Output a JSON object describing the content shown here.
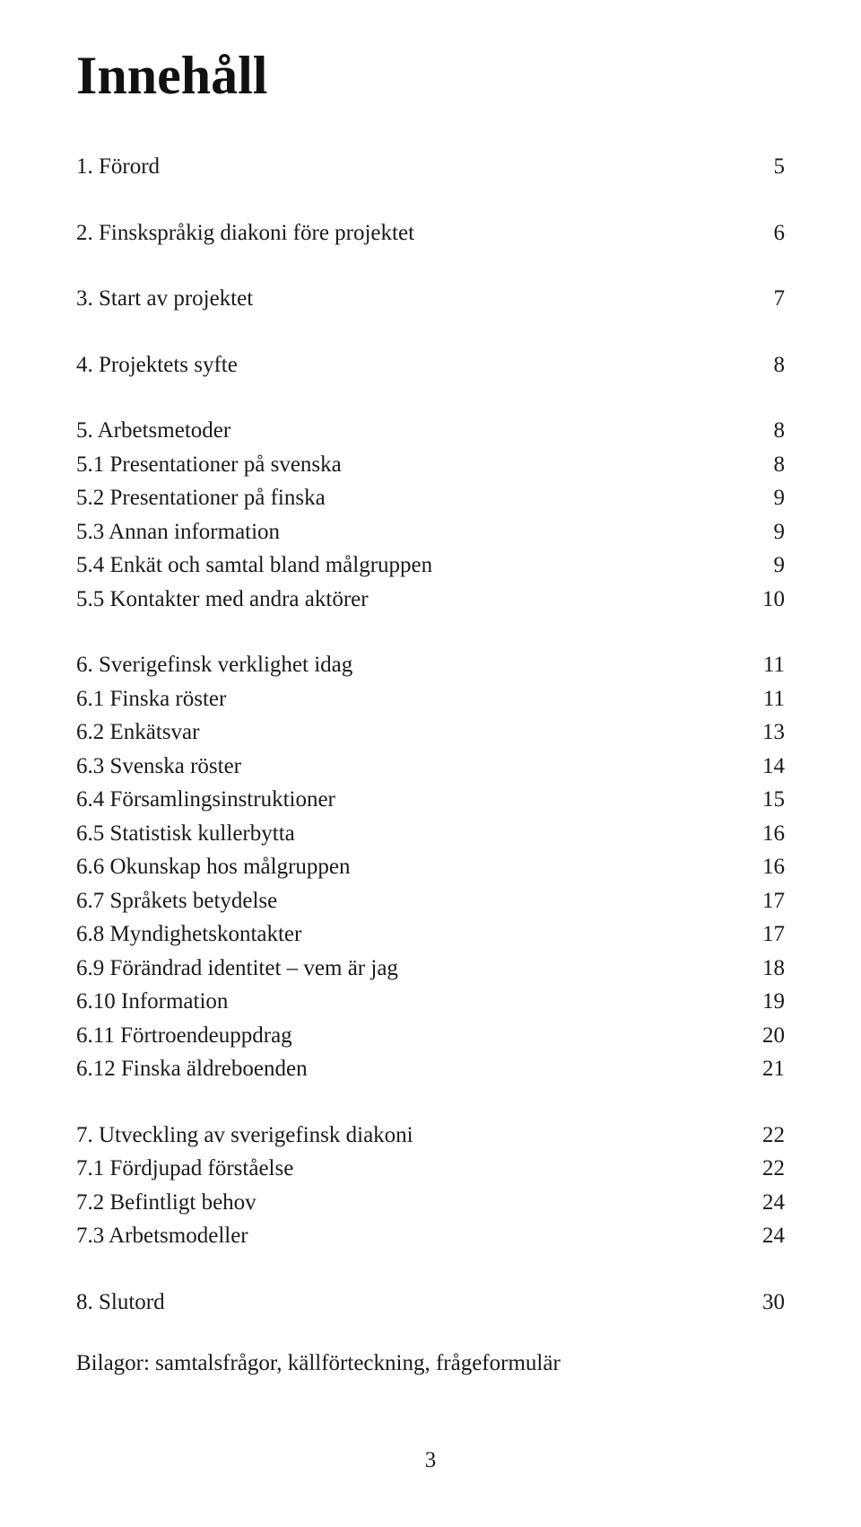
{
  "title": "Innehåll",
  "groups": [
    {
      "entries": [
        {
          "label": "1. Förord",
          "page": "5"
        }
      ]
    },
    {
      "entries": [
        {
          "label": "2. Finskspråkig diakoni före projektet",
          "page": "6"
        }
      ]
    },
    {
      "entries": [
        {
          "label": "3. Start av projektet",
          "page": "7"
        }
      ]
    },
    {
      "entries": [
        {
          "label": "4. Projektets syfte",
          "page": "8"
        }
      ]
    },
    {
      "entries": [
        {
          "label": "5. Arbetsmetoder",
          "page": "8"
        },
        {
          "label": "5.1 Presentationer på svenska",
          "page": "8"
        },
        {
          "label": "5.2 Presentationer på finska",
          "page": "9"
        },
        {
          "label": "5.3 Annan information",
          "page": "9"
        },
        {
          "label": "5.4 Enkät och samtal bland målgruppen",
          "page": "9"
        },
        {
          "label": "5.5 Kontakter med andra aktörer",
          "page": "10"
        }
      ]
    },
    {
      "entries": [
        {
          "label": "6. Sverigefinsk verklighet idag",
          "page": "11"
        },
        {
          "label": "6.1 Finska röster",
          "page": "11"
        },
        {
          "label": "6.2 Enkätsvar",
          "page": "13"
        },
        {
          "label": "6.3 Svenska röster",
          "page": "14"
        },
        {
          "label": "6.4 Församlingsinstruktioner",
          "page": "15"
        },
        {
          "label": "6.5 Statistisk kullerbytta",
          "page": "16"
        },
        {
          "label": "6.6 Okunskap hos målgruppen",
          "page": "16"
        },
        {
          "label": "6.7 Språkets betydelse",
          "page": "17"
        },
        {
          "label": "6.8 Myndighetskontakter",
          "page": "17"
        },
        {
          "label": "6.9 Förändrad identitet – vem är jag",
          "page": "18"
        },
        {
          "label": "6.10 Information",
          "page": "19"
        },
        {
          "label": "6.11 Förtroendeuppdrag",
          "page": "20"
        },
        {
          "label": "6.12 Finska äldreboenden",
          "page": "21"
        }
      ]
    },
    {
      "entries": [
        {
          "label": "7. Utveckling av sverigefinsk diakoni",
          "page": "22"
        },
        {
          "label": "7.1 Fördjupad förståelse",
          "page": "22"
        },
        {
          "label": "7.2 Befintligt behov",
          "page": "24"
        },
        {
          "label": "7.3 Arbetsmodeller",
          "page": "24"
        }
      ]
    },
    {
      "entries": [
        {
          "label": "8. Slutord",
          "page": "30"
        }
      ]
    }
  ],
  "footer_line": "Bilagor: samtalsfrågor, källförteckning, frågeformulär",
  "page_number": "3",
  "colors": {
    "text": "#1a1a1a",
    "background": "#ffffff"
  }
}
